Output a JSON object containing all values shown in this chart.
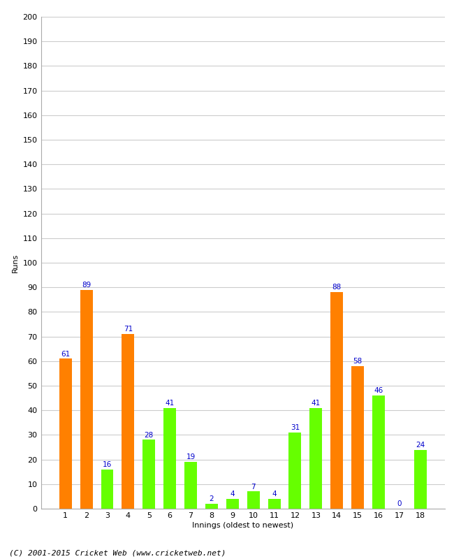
{
  "innings": [
    1,
    2,
    3,
    4,
    5,
    6,
    7,
    8,
    9,
    10,
    11,
    12,
    13,
    14,
    15,
    16,
    17,
    18
  ],
  "values": [
    61,
    89,
    16,
    71,
    28,
    41,
    19,
    2,
    4,
    7,
    4,
    31,
    41,
    88,
    58,
    46,
    0,
    24
  ],
  "colors": [
    "#FF8000",
    "#FF8000",
    "#66FF00",
    "#FF8000",
    "#66FF00",
    "#66FF00",
    "#66FF00",
    "#66FF00",
    "#66FF00",
    "#66FF00",
    "#66FF00",
    "#66FF00",
    "#66FF00",
    "#FF8000",
    "#FF8000",
    "#66FF00",
    "#66FF00",
    "#66FF00"
  ],
  "ylabel": "Runs",
  "xlabel": "Innings (oldest to newest)",
  "ylim": [
    0,
    200
  ],
  "yticks": [
    0,
    10,
    20,
    30,
    40,
    50,
    60,
    70,
    80,
    90,
    100,
    110,
    120,
    130,
    140,
    150,
    160,
    170,
    180,
    190,
    200
  ],
  "label_color": "#0000CC",
  "background_color": "#ffffff",
  "plot_bg_color": "#ffffff",
  "grid_color": "#cccccc",
  "footer": "(C) 2001-2015 Cricket Web (www.cricketweb.net)"
}
